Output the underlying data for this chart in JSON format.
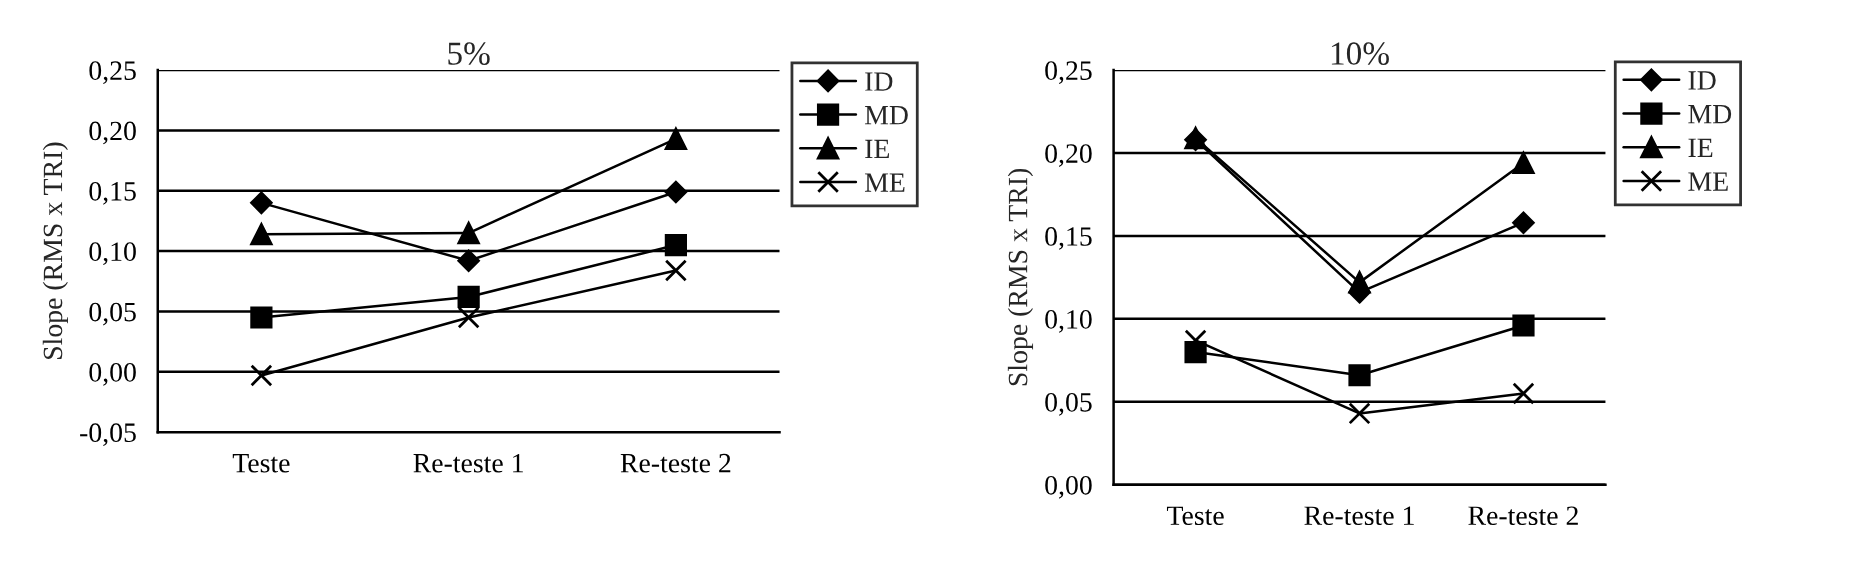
{
  "chart_data": [
    {
      "type": "line",
      "title": "5%",
      "ylabel": "Slope (RMS x TRI)",
      "categories": [
        "Teste",
        "Re-teste 1",
        "Re-teste 2"
      ],
      "series": [
        {
          "name": "ID",
          "color": "#000000",
          "marker": "diamond",
          "values": [
            0.14,
            0.092,
            0.149
          ]
        },
        {
          "name": "MD",
          "color": "#000000",
          "marker": "square",
          "values": [
            0.045,
            0.062,
            0.105
          ]
        },
        {
          "name": "IE",
          "color": "#000000",
          "marker": "triangle",
          "values": [
            0.114,
            0.115,
            0.193
          ]
        },
        {
          "name": "ME",
          "color": "#000000",
          "marker": "cross",
          "values": [
            -0.003,
            0.045,
            0.084
          ]
        }
      ],
      "ylim": [
        -0.05,
        0.25
      ],
      "yticks": [
        {
          "value": -0.05,
          "label": "-0,05"
        },
        {
          "value": 0,
          "label": "0,00"
        },
        {
          "value": 0.05,
          "label": "0,05"
        },
        {
          "value": 0.1,
          "label": "0,10"
        },
        {
          "value": 0.15,
          "label": "0,15"
        },
        {
          "value": 0.2,
          "label": "0,20"
        },
        {
          "value": 0.25,
          "label": "0,25"
        }
      ],
      "grid": "y",
      "legend": "top right"
    },
    {
      "type": "line",
      "title": "10%",
      "ylabel": "Slope (RMS x TRI)",
      "categories": [
        "Teste",
        "Re-teste 1",
        "Re-teste 2"
      ],
      "series": [
        {
          "name": "ID",
          "color": "#000000",
          "marker": "diamond",
          "values": [
            0.208,
            0.116,
            0.158
          ]
        },
        {
          "name": "MD",
          "color": "#000000",
          "marker": "square",
          "values": [
            0.08,
            0.066,
            0.096
          ]
        },
        {
          "name": "IE",
          "color": "#000000",
          "marker": "triangle",
          "values": [
            0.209,
            0.122,
            0.194
          ]
        },
        {
          "name": "ME",
          "color": "#000000",
          "marker": "cross",
          "values": [
            0.087,
            0.043,
            0.055
          ]
        }
      ],
      "ylim": [
        0,
        0.25
      ],
      "yticks": [
        {
          "value": 0,
          "label": "0,00"
        },
        {
          "value": 0.05,
          "label": "0,05"
        },
        {
          "value": 0.1,
          "label": "0,10"
        },
        {
          "value": 0.15,
          "label": "0,15"
        },
        {
          "value": 0.2,
          "label": "0,20"
        },
        {
          "value": 0.25,
          "label": "0,25"
        }
      ],
      "grid": "y",
      "legend": "top right"
    }
  ]
}
